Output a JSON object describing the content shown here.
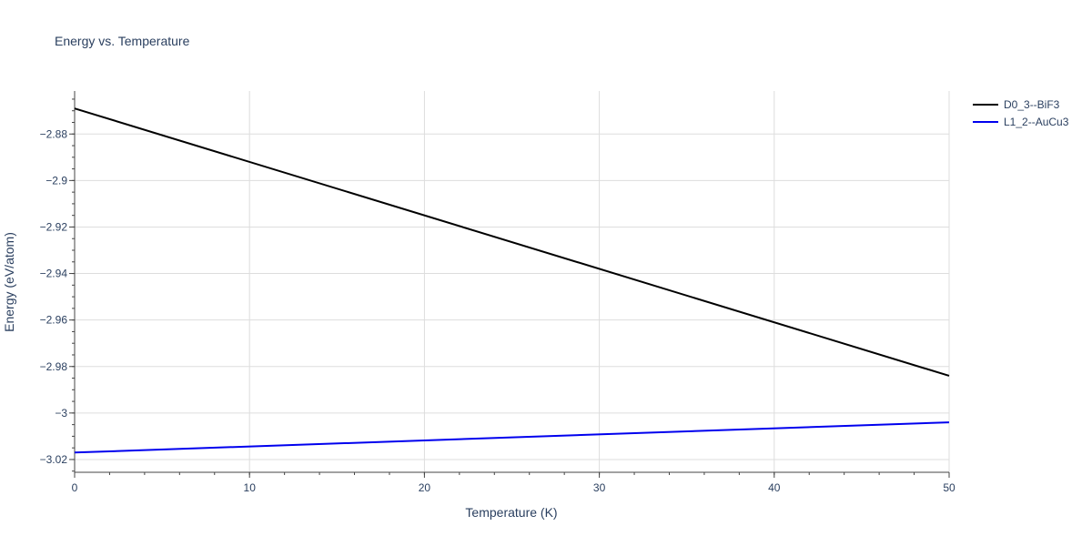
{
  "chart_data": {
    "type": "line",
    "title": "Energy vs. Temperature",
    "xlabel": "Temperature (K)",
    "ylabel": "Energy (eV/atom)",
    "xlim": [
      0,
      50
    ],
    "ylim": [
      -3.0255,
      -2.8615
    ],
    "x_ticks": [
      0,
      10,
      20,
      30,
      40,
      50
    ],
    "x_tick_labels": [
      "0",
      "10",
      "20",
      "30",
      "40",
      "50"
    ],
    "y_ticks": [
      -3.02,
      -3.0,
      -2.98,
      -2.96,
      -2.94,
      -2.92,
      -2.9,
      -2.88
    ],
    "y_tick_labels": [
      "−3.02",
      "−3",
      "−2.98",
      "−2.96",
      "−2.94",
      "−2.92",
      "−2.9",
      "−2.88"
    ],
    "grid": true,
    "legend_position": "top-right",
    "series": [
      {
        "name": "D0_3--BiF3",
        "color": "#000000",
        "x": [
          0,
          50
        ],
        "y": [
          -2.869,
          -2.984
        ]
      },
      {
        "name": "L1_2--AuCu3",
        "color": "#0000ee",
        "x": [
          0,
          50
        ],
        "y": [
          -3.017,
          -3.004
        ]
      }
    ]
  }
}
